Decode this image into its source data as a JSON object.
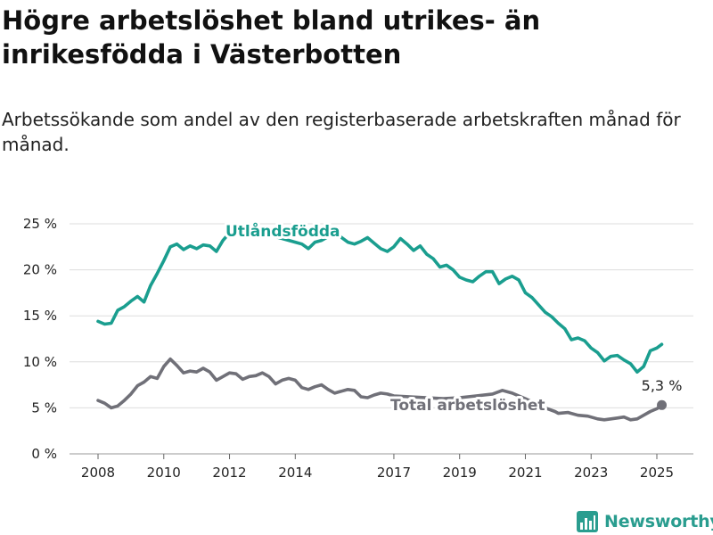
{
  "title": "Högre arbetslöshet bland utrikes- än inrikesfödda i Västerbotten",
  "subtitle": "Arbetssökande som andel av den registerbaserade arbetskraften månad för månad.",
  "brand": {
    "name": "Newsworthy",
    "icon": "bar-chart-logo-icon"
  },
  "colors": {
    "utlandsfodda": "#1a9e8f",
    "total": "#707078",
    "grid": "#dddddd"
  },
  "chart_data": {
    "type": "line",
    "title": "Högre arbetslöshet bland utrikes- än inrikesfödda i Västerbotten",
    "subtitle": "Arbetssökande som andel av den registerbaserade arbetskraften månad för månad.",
    "xlabel": "",
    "ylabel": "",
    "ylim": [
      0,
      25
    ],
    "yticks": [
      0,
      5,
      10,
      15,
      20,
      25
    ],
    "ytick_labels": [
      "0 %",
      "5 %",
      "10 %",
      "15 %",
      "20 %",
      "25 %"
    ],
    "xticks": [
      2008,
      2010,
      2012,
      2014,
      2017,
      2019,
      2021,
      2023,
      2025
    ],
    "xtick_labels": [
      "2008",
      "2010",
      "2012",
      "2014",
      "2017",
      "2019",
      "2021",
      "2023",
      "2025"
    ],
    "grid": true,
    "legend": "inline labels",
    "series": [
      {
        "name": "Utlandsfödda",
        "label": "Utlåndsfödda",
        "color": "#1a9e8f",
        "points": [
          [
            2008.0,
            14.4
          ],
          [
            2008.2,
            14.1
          ],
          [
            2008.4,
            14.2
          ],
          [
            2008.6,
            15.6
          ],
          [
            2008.8,
            16.0
          ],
          [
            2009.0,
            16.6
          ],
          [
            2009.2,
            17.1
          ],
          [
            2009.4,
            16.5
          ],
          [
            2009.6,
            18.3
          ],
          [
            2009.8,
            19.6
          ],
          [
            2010.0,
            21.0
          ],
          [
            2010.2,
            22.5
          ],
          [
            2010.4,
            22.8
          ],
          [
            2010.6,
            22.2
          ],
          [
            2010.8,
            22.6
          ],
          [
            2011.0,
            22.3
          ],
          [
            2011.2,
            22.7
          ],
          [
            2011.4,
            22.6
          ],
          [
            2011.6,
            22.0
          ],
          [
            2011.8,
            23.2
          ],
          [
            2012.0,
            24.0
          ],
          [
            2012.5,
            24.2
          ],
          [
            2013.0,
            24.0
          ],
          [
            2013.5,
            23.5
          ],
          [
            2014.0,
            23.0
          ],
          [
            2014.2,
            22.8
          ],
          [
            2014.4,
            22.3
          ],
          [
            2014.6,
            23.0
          ],
          [
            2014.8,
            23.2
          ],
          [
            2015.0,
            23.6
          ],
          [
            2015.3,
            23.8
          ],
          [
            2015.6,
            23.0
          ],
          [
            2015.8,
            22.8
          ],
          [
            2016.0,
            23.1
          ],
          [
            2016.2,
            23.5
          ],
          [
            2016.4,
            22.9
          ],
          [
            2016.6,
            22.3
          ],
          [
            2016.8,
            22.0
          ],
          [
            2017.0,
            22.5
          ],
          [
            2017.2,
            23.4
          ],
          [
            2017.4,
            22.8
          ],
          [
            2017.6,
            22.1
          ],
          [
            2017.8,
            22.6
          ],
          [
            2018.0,
            21.7
          ],
          [
            2018.2,
            21.2
          ],
          [
            2018.4,
            20.3
          ],
          [
            2018.6,
            20.5
          ],
          [
            2018.8,
            20.0
          ],
          [
            2019.0,
            19.2
          ],
          [
            2019.2,
            18.9
          ],
          [
            2019.4,
            18.7
          ],
          [
            2019.6,
            19.3
          ],
          [
            2019.8,
            19.8
          ],
          [
            2020.0,
            19.8
          ],
          [
            2020.2,
            18.5
          ],
          [
            2020.4,
            19.0
          ],
          [
            2020.6,
            19.3
          ],
          [
            2020.8,
            18.9
          ],
          [
            2021.0,
            17.5
          ],
          [
            2021.2,
            17.0
          ],
          [
            2021.4,
            16.2
          ],
          [
            2021.6,
            15.4
          ],
          [
            2021.8,
            14.9
          ],
          [
            2022.0,
            14.2
          ],
          [
            2022.2,
            13.6
          ],
          [
            2022.4,
            12.4
          ],
          [
            2022.6,
            12.6
          ],
          [
            2022.8,
            12.3
          ],
          [
            2023.0,
            11.5
          ],
          [
            2023.2,
            11.0
          ],
          [
            2023.4,
            10.1
          ],
          [
            2023.6,
            10.6
          ],
          [
            2023.8,
            10.7
          ],
          [
            2024.0,
            10.2
          ],
          [
            2024.2,
            9.8
          ],
          [
            2024.4,
            8.9
          ],
          [
            2024.6,
            9.5
          ],
          [
            2024.8,
            11.2
          ],
          [
            2025.0,
            11.5
          ],
          [
            2025.15,
            11.9
          ]
        ]
      },
      {
        "name": "Total arbetslöshet",
        "label": "Total arbetslöshet",
        "color": "#707078",
        "end_value_label": "5,3 %",
        "points": [
          [
            2008.0,
            5.8
          ],
          [
            2008.2,
            5.5
          ],
          [
            2008.4,
            5.0
          ],
          [
            2008.6,
            5.2
          ],
          [
            2008.8,
            5.8
          ],
          [
            2009.0,
            6.5
          ],
          [
            2009.2,
            7.4
          ],
          [
            2009.4,
            7.8
          ],
          [
            2009.6,
            8.4
          ],
          [
            2009.8,
            8.2
          ],
          [
            2010.0,
            9.5
          ],
          [
            2010.2,
            10.3
          ],
          [
            2010.4,
            9.6
          ],
          [
            2010.6,
            8.8
          ],
          [
            2010.8,
            9.0
          ],
          [
            2011.0,
            8.9
          ],
          [
            2011.2,
            9.3
          ],
          [
            2011.4,
            8.9
          ],
          [
            2011.6,
            8.0
          ],
          [
            2011.8,
            8.4
          ],
          [
            2012.0,
            8.8
          ],
          [
            2012.2,
            8.7
          ],
          [
            2012.4,
            8.1
          ],
          [
            2012.6,
            8.4
          ],
          [
            2012.8,
            8.5
          ],
          [
            2013.0,
            8.8
          ],
          [
            2013.2,
            8.4
          ],
          [
            2013.4,
            7.6
          ],
          [
            2013.6,
            8.0
          ],
          [
            2013.8,
            8.2
          ],
          [
            2014.0,
            8.0
          ],
          [
            2014.2,
            7.2
          ],
          [
            2014.4,
            7.0
          ],
          [
            2014.6,
            7.3
          ],
          [
            2014.8,
            7.5
          ],
          [
            2015.0,
            7.0
          ],
          [
            2015.2,
            6.6
          ],
          [
            2015.4,
            6.8
          ],
          [
            2015.6,
            7.0
          ],
          [
            2015.8,
            6.9
          ],
          [
            2016.0,
            6.2
          ],
          [
            2016.2,
            6.1
          ],
          [
            2016.4,
            6.4
          ],
          [
            2016.6,
            6.6
          ],
          [
            2016.8,
            6.5
          ],
          [
            2017.0,
            6.3
          ],
          [
            2017.5,
            6.2
          ],
          [
            2018.0,
            6.1
          ],
          [
            2018.5,
            6.0
          ],
          [
            2019.0,
            6.1
          ],
          [
            2019.5,
            6.3
          ],
          [
            2020.0,
            6.5
          ],
          [
            2020.3,
            6.9
          ],
          [
            2020.6,
            6.6
          ],
          [
            2020.8,
            6.3
          ],
          [
            2021.0,
            6.0
          ],
          [
            2021.3,
            5.5
          ],
          [
            2021.6,
            5.0
          ],
          [
            2021.9,
            4.6
          ],
          [
            2022.0,
            4.4
          ],
          [
            2022.3,
            4.5
          ],
          [
            2022.6,
            4.2
          ],
          [
            2022.9,
            4.1
          ],
          [
            2023.2,
            3.8
          ],
          [
            2023.4,
            3.7
          ],
          [
            2023.6,
            3.8
          ],
          [
            2023.8,
            3.9
          ],
          [
            2024.0,
            4.0
          ],
          [
            2024.2,
            3.7
          ],
          [
            2024.4,
            3.8
          ],
          [
            2024.6,
            4.2
          ],
          [
            2024.8,
            4.6
          ],
          [
            2025.0,
            4.9
          ],
          [
            2025.15,
            5.3
          ]
        ]
      }
    ]
  }
}
